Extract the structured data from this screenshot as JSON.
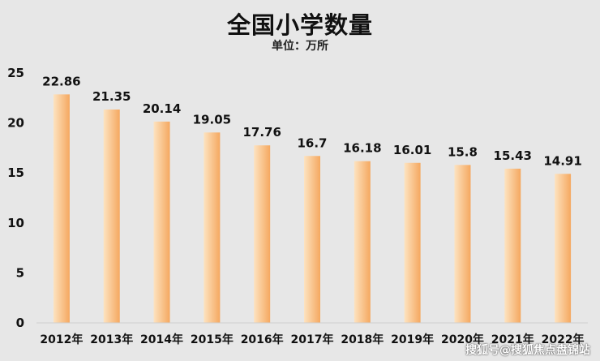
{
  "chart_data": {
    "type": "bar",
    "title": "全国小学数量",
    "subtitle": "单位：万所",
    "categories": [
      "2012年",
      "2013年",
      "2014年",
      "2015年",
      "2016年",
      "2017年",
      "2018年",
      "2019年",
      "2020年",
      "2021年",
      "2022年"
    ],
    "values": [
      22.86,
      21.35,
      20.14,
      19.05,
      17.76,
      16.7,
      16.18,
      16.01,
      15.8,
      15.43,
      14.91
    ],
    "data_labels": [
      "22.86",
      "21.35",
      "20.14",
      "19.05",
      "17.76",
      "16.7",
      "16.18",
      "16.01",
      "15.8",
      "15.43",
      "14.91"
    ],
    "ylim": [
      0,
      25
    ],
    "yticks": [
      0,
      5,
      10,
      15,
      20,
      25
    ],
    "grid": false,
    "bar_color_light": "#fde3c0",
    "bar_color_dark": "#f5a860"
  },
  "watermark": "搜狐号@搜狐焦点盘锦站"
}
